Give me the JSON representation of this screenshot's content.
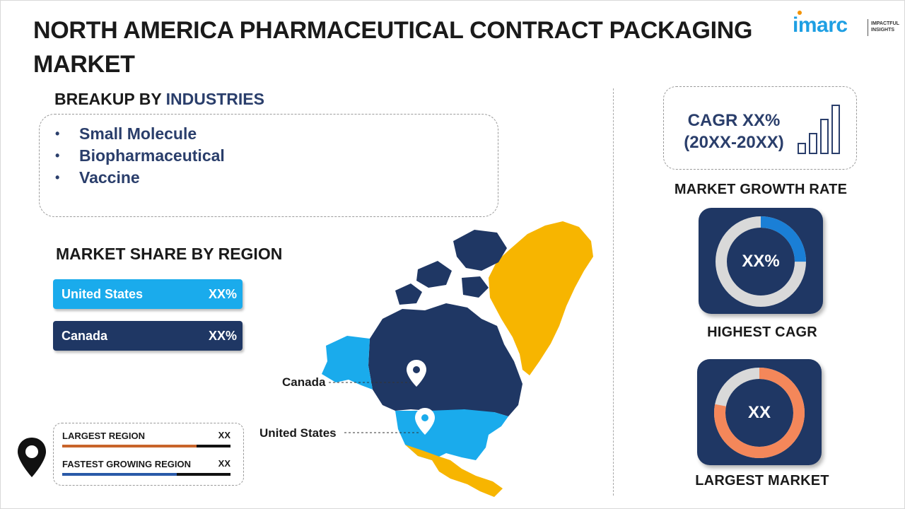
{
  "title": "NORTH AMERICA PHARMACEUTICAL CONTRACT PACKAGING MARKET",
  "logo": {
    "brand": "imarc",
    "tagline": "IMPACTFUL INSIGHTS"
  },
  "industries": {
    "heading_prefix": "BREAKUP BY",
    "heading_highlight": "INDUSTRIES",
    "items": [
      "Small Molecule",
      "Biopharmaceutical",
      "Vaccine"
    ]
  },
  "regions": {
    "heading": "MARKET SHARE BY REGION",
    "bars": [
      {
        "name": "United States",
        "value": "XX%",
        "color": "#1aabec"
      },
      {
        "name": "Canada",
        "value": "XX%",
        "color": "#1f3764"
      }
    ]
  },
  "legend": {
    "largest_label": "LARGEST REGION",
    "largest_value": "XX",
    "fastest_label": "FASTEST GROWING REGION",
    "fastest_value": "XX",
    "largest_fill_fraction": 0.8,
    "fastest_fill_fraction": 0.68,
    "largest_color": "#c8642a",
    "fastest_color": "#2a5aa8"
  },
  "map": {
    "canada_label": "Canada",
    "us_label": "United States",
    "canada_color": "#1f3764",
    "us_color": "#1aabec",
    "greenland_color": "#f7b500",
    "mexico_color": "#f7b500"
  },
  "cagr": {
    "line1": "CAGR XX%",
    "line2": "(20XX-20XX)",
    "caption": "MARKET GROWTH RATE"
  },
  "kpi_highest": {
    "value": "XX%",
    "caption": "HIGHEST CAGR",
    "fill_fraction": 0.25,
    "color": "#1a7fd6"
  },
  "kpi_largest": {
    "value": "XX",
    "caption": "LARGEST MARKET",
    "fill_fraction": 0.78,
    "color": "#f4875a"
  }
}
